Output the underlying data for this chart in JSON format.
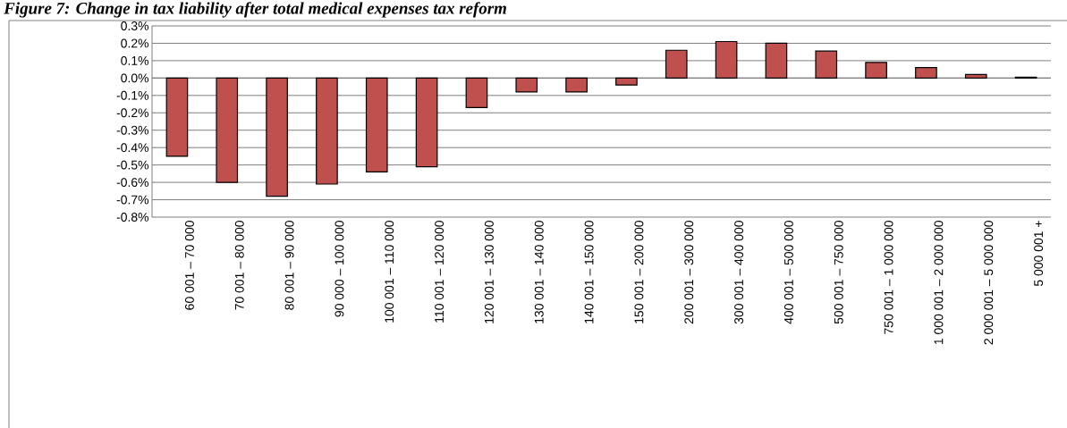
{
  "chart_data": {
    "type": "bar",
    "title": "Figure 7: Change in tax liability after total medical expenses tax reform",
    "categories": [
      "60 001 – 70 000",
      "70 001 – 80 000",
      "80 001 – 90 000",
      "90 000 – 100 000",
      "100 001 – 110 000",
      "110 001 – 120 000",
      "120 001 – 130 000",
      "130 001 – 140 000",
      "140 001 – 150 000",
      "150 001 – 200 000",
      "200 001 – 300 000",
      "300 001 – 400 000",
      "400 001 – 500 000",
      "500 001 – 750 000",
      "750 001 – 1 000 000",
      "1 000 001 – 2 000 000",
      "2 000 001 – 5 000 000",
      "5 000 001 +"
    ],
    "values": [
      -0.45,
      -0.6,
      -0.68,
      -0.61,
      -0.54,
      -0.51,
      -0.17,
      -0.08,
      -0.08,
      -0.04,
      0.16,
      0.21,
      0.2,
      0.155,
      0.09,
      0.06,
      0.02,
      0.005
    ],
    "color": "#c0504d",
    "ylim": [
      -0.8,
      0.3
    ],
    "yticks": [
      {
        "value": -0.8,
        "label": "-0.8%"
      },
      {
        "value": -0.7,
        "label": "-0.7%"
      },
      {
        "value": -0.6,
        "label": "-0.6%"
      },
      {
        "value": -0.5,
        "label": "-0.5%"
      },
      {
        "value": -0.4,
        "label": "-0.4%"
      },
      {
        "value": -0.3,
        "label": "-0.3%"
      },
      {
        "value": -0.2,
        "label": "-0.2%"
      },
      {
        "value": -0.1,
        "label": "-0.1%"
      },
      {
        "value": 0.0,
        "label": "0.0%"
      },
      {
        "value": 0.1,
        "label": "0.1%"
      },
      {
        "value": 0.2,
        "label": "0.2%"
      },
      {
        "value": 0.3,
        "label": "0.3%"
      }
    ],
    "grid": "y"
  }
}
